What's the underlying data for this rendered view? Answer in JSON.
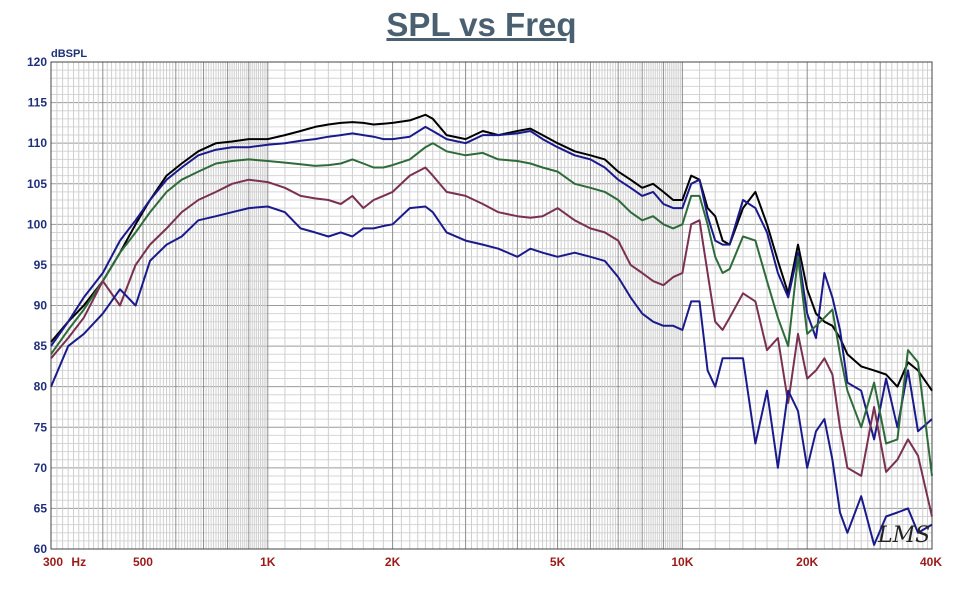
{
  "chart_data": {
    "type": "line",
    "title": "SPL vs Freq",
    "ylabel": "dBSPL",
    "x_scale": "log",
    "xlim": [
      300,
      40000
    ],
    "ylim": [
      60,
      120
    ],
    "grid": true,
    "y_ticks": [
      "120",
      "115",
      "110",
      "105",
      "100",
      "95",
      "90",
      "85",
      "80",
      "75",
      "70",
      "65",
      "60"
    ],
    "x_tick_labels": [
      {
        "x": 300,
        "label": "300"
      },
      {
        "x": 350,
        "label": "Hz"
      },
      {
        "x": 500,
        "label": "500"
      },
      {
        "x": 1000,
        "label": "1K"
      },
      {
        "x": 2000,
        "label": "2K"
      },
      {
        "x": 5000,
        "label": "5K"
      },
      {
        "x": 10000,
        "label": "10K"
      },
      {
        "x": 20000,
        "label": "20K"
      },
      {
        "x": 40000,
        "label": "40K"
      }
    ],
    "watermark": "LMS",
    "series": [
      {
        "color": "#000000",
        "x": [
          300,
          330,
          360,
          400,
          440,
          480,
          520,
          570,
          620,
          680,
          750,
          820,
          900,
          1000,
          1100,
          1200,
          1300,
          1400,
          1500,
          1600,
          1700,
          1800,
          1900,
          2000,
          2200,
          2400,
          2500,
          2700,
          3000,
          3300,
          3600,
          4000,
          4300,
          4600,
          5000,
          5500,
          6000,
          6500,
          7000,
          7500,
          8000,
          8500,
          9000,
          9500,
          10000,
          10500,
          11000,
          11500,
          12000,
          12500,
          13000,
          14000,
          15000,
          16000,
          17000,
          18000,
          19000,
          20000,
          21000,
          22000,
          23000,
          24000,
          25000,
          27000,
          29000,
          31000,
          33000,
          35000,
          37000,
          40000
        ],
        "y": [
          85.5,
          88.0,
          90.0,
          93.0,
          96.5,
          100.0,
          103.0,
          106.0,
          107.5,
          109.0,
          110.0,
          110.2,
          110.5,
          110.5,
          111.0,
          111.5,
          112.0,
          112.3,
          112.5,
          112.6,
          112.5,
          112.3,
          112.4,
          112.5,
          112.8,
          113.5,
          113.0,
          111.0,
          110.5,
          111.5,
          111.0,
          111.5,
          111.8,
          111.0,
          110.0,
          109.0,
          108.5,
          108.0,
          106.5,
          105.5,
          104.5,
          105.0,
          104.0,
          103.0,
          103.0,
          106.0,
          105.5,
          102.0,
          101.0,
          98.0,
          97.5,
          102.0,
          104.0,
          100.0,
          95.5,
          91.5,
          97.5,
          92.0,
          89.0,
          88.0,
          87.5,
          86.0,
          84.0,
          82.5,
          82.0,
          81.5,
          80.0,
          83.0,
          82.0,
          79.5
        ]
      },
      {
        "color": "#1a1a8c",
        "x": [
          300,
          330,
          360,
          400,
          440,
          480,
          520,
          570,
          620,
          680,
          750,
          820,
          900,
          1000,
          1100,
          1200,
          1300,
          1400,
          1500,
          1600,
          1700,
          1800,
          1900,
          2000,
          2200,
          2400,
          2500,
          2700,
          3000,
          3300,
          3600,
          4000,
          4300,
          4600,
          5000,
          5500,
          6000,
          6500,
          7000,
          7500,
          8000,
          8500,
          9000,
          9500,
          10000,
          10500,
          11000,
          11500,
          12000,
          12500,
          13000,
          14000,
          15000,
          16000,
          17000,
          18000,
          19000,
          20000,
          21000,
          22000,
          23000,
          24000,
          25000,
          27000,
          29000,
          31000,
          33000,
          35000,
          37000,
          40000
        ],
        "y": [
          85.0,
          88.0,
          91.0,
          94.0,
          98.0,
          100.5,
          103.0,
          105.5,
          107.0,
          108.5,
          109.2,
          109.5,
          109.5,
          109.8,
          110.0,
          110.3,
          110.5,
          110.8,
          111.0,
          111.2,
          111.0,
          110.8,
          110.5,
          110.5,
          110.8,
          112.0,
          111.5,
          110.5,
          110.0,
          111.0,
          111.0,
          111.2,
          111.5,
          110.5,
          109.5,
          108.5,
          108.0,
          107.0,
          105.5,
          104.5,
          103.5,
          104.0,
          102.5,
          102.0,
          102.0,
          105.0,
          105.5,
          101.0,
          98.0,
          97.5,
          97.5,
          103.0,
          102.0,
          99.0,
          94.0,
          91.0,
          96.5,
          89.0,
          86.0,
          94.0,
          91.0,
          87.0,
          80.5,
          79.5,
          73.5,
          81.0,
          75.0,
          82.0,
          74.5,
          76.0
        ]
      },
      {
        "color": "#2e6b3a",
        "x": [
          300,
          330,
          360,
          400,
          440,
          480,
          520,
          570,
          620,
          680,
          750,
          820,
          900,
          1000,
          1100,
          1200,
          1300,
          1400,
          1500,
          1600,
          1700,
          1800,
          1900,
          2000,
          2200,
          2400,
          2500,
          2700,
          3000,
          3300,
          3600,
          4000,
          4300,
          4600,
          5000,
          5500,
          6000,
          6500,
          7000,
          7500,
          8000,
          8500,
          9000,
          9500,
          10000,
          10500,
          11000,
          11500,
          12000,
          12500,
          13000,
          14000,
          15000,
          16000,
          17000,
          18000,
          19000,
          20000,
          21000,
          22000,
          23000,
          24000,
          25000,
          27000,
          29000,
          31000,
          33000,
          35000,
          37000,
          40000
        ],
        "y": [
          84.0,
          87.0,
          89.5,
          93.0,
          96.5,
          99.0,
          101.5,
          104.0,
          105.5,
          106.5,
          107.5,
          107.8,
          108.0,
          107.8,
          107.6,
          107.4,
          107.2,
          107.3,
          107.5,
          108.0,
          107.5,
          107.0,
          107.0,
          107.3,
          108.0,
          109.5,
          110.0,
          109.0,
          108.5,
          108.8,
          108.0,
          107.8,
          107.5,
          107.0,
          106.5,
          105.0,
          104.5,
          104.0,
          103.0,
          101.5,
          100.5,
          101.0,
          100.0,
          99.5,
          100.0,
          103.5,
          103.5,
          100.0,
          96.0,
          94.0,
          94.5,
          98.5,
          98.0,
          93.0,
          88.5,
          85.0,
          96.0,
          86.5,
          87.5,
          88.5,
          89.5,
          84.0,
          79.5,
          75.0,
          80.5,
          73.0,
          73.5,
          84.5,
          83.0,
          69.0
        ]
      },
      {
        "color": "#7a3050",
        "x": [
          300,
          330,
          360,
          400,
          440,
          480,
          520,
          570,
          620,
          680,
          750,
          820,
          900,
          1000,
          1100,
          1200,
          1300,
          1400,
          1500,
          1600,
          1700,
          1800,
          1900,
          2000,
          2200,
          2400,
          2500,
          2700,
          3000,
          3300,
          3600,
          4000,
          4300,
          4600,
          5000,
          5500,
          6000,
          6500,
          7000,
          7500,
          8000,
          8500,
          9000,
          9500,
          10000,
          10500,
          11000,
          11500,
          12000,
          12500,
          13000,
          14000,
          15000,
          16000,
          17000,
          18000,
          19000,
          20000,
          21000,
          22000,
          23000,
          24000,
          25000,
          27000,
          29000,
          31000,
          33000,
          35000,
          37000,
          40000
        ],
        "y": [
          83.5,
          86.0,
          88.5,
          93.0,
          90.0,
          95.0,
          97.5,
          99.5,
          101.5,
          103.0,
          104.0,
          105.0,
          105.5,
          105.2,
          104.5,
          103.5,
          103.2,
          103.0,
          102.5,
          103.5,
          102.0,
          103.0,
          103.5,
          104.0,
          106.0,
          107.0,
          106.0,
          104.0,
          103.5,
          102.5,
          101.5,
          101.0,
          100.8,
          101.0,
          102.0,
          100.5,
          99.5,
          99.0,
          98.0,
          95.0,
          94.0,
          93.0,
          92.5,
          93.5,
          94.0,
          100.0,
          100.5,
          94.0,
          88.0,
          87.0,
          88.5,
          91.5,
          90.5,
          84.5,
          86.0,
          78.0,
          86.5,
          81.0,
          82.0,
          83.5,
          81.5,
          75.0,
          70.0,
          69.0,
          77.5,
          69.5,
          71.0,
          73.5,
          71.5,
          64.0
        ]
      },
      {
        "color": "#1a1a8c",
        "x": [
          300,
          330,
          360,
          400,
          440,
          480,
          520,
          570,
          620,
          680,
          750,
          820,
          900,
          1000,
          1100,
          1200,
          1300,
          1400,
          1500,
          1600,
          1700,
          1800,
          1900,
          2000,
          2200,
          2400,
          2500,
          2700,
          3000,
          3300,
          3600,
          4000,
          4300,
          4600,
          5000,
          5500,
          6000,
          6500,
          7000,
          7500,
          8000,
          8500,
          9000,
          9500,
          10000,
          10500,
          11000,
          11500,
          12000,
          12500,
          13000,
          14000,
          15000,
          16000,
          17000,
          18000,
          19000,
          20000,
          21000,
          22000,
          23000,
          24000,
          25000,
          27000,
          29000,
          31000,
          33000,
          35000,
          37000,
          40000
        ],
        "y": [
          80.0,
          85.0,
          86.5,
          89.0,
          92.0,
          90.0,
          95.5,
          97.5,
          98.5,
          100.5,
          101.0,
          101.5,
          102.0,
          102.2,
          101.5,
          99.5,
          99.0,
          98.5,
          99.0,
          98.5,
          99.5,
          99.5,
          99.8,
          100.0,
          102.0,
          102.2,
          101.5,
          99.0,
          98.0,
          97.5,
          97.0,
          96.0,
          97.0,
          96.5,
          96.0,
          96.5,
          96.0,
          95.5,
          93.5,
          91.0,
          89.0,
          88.0,
          87.5,
          87.5,
          87.0,
          90.5,
          90.5,
          82.0,
          80.0,
          83.5,
          83.5,
          83.5,
          73.0,
          79.5,
          70.0,
          79.5,
          77.0,
          70.0,
          74.5,
          76.0,
          71.0,
          64.5,
          62.0,
          66.5,
          60.5,
          64.0,
          64.5,
          65.0,
          62.0,
          63.0
        ]
      }
    ]
  }
}
